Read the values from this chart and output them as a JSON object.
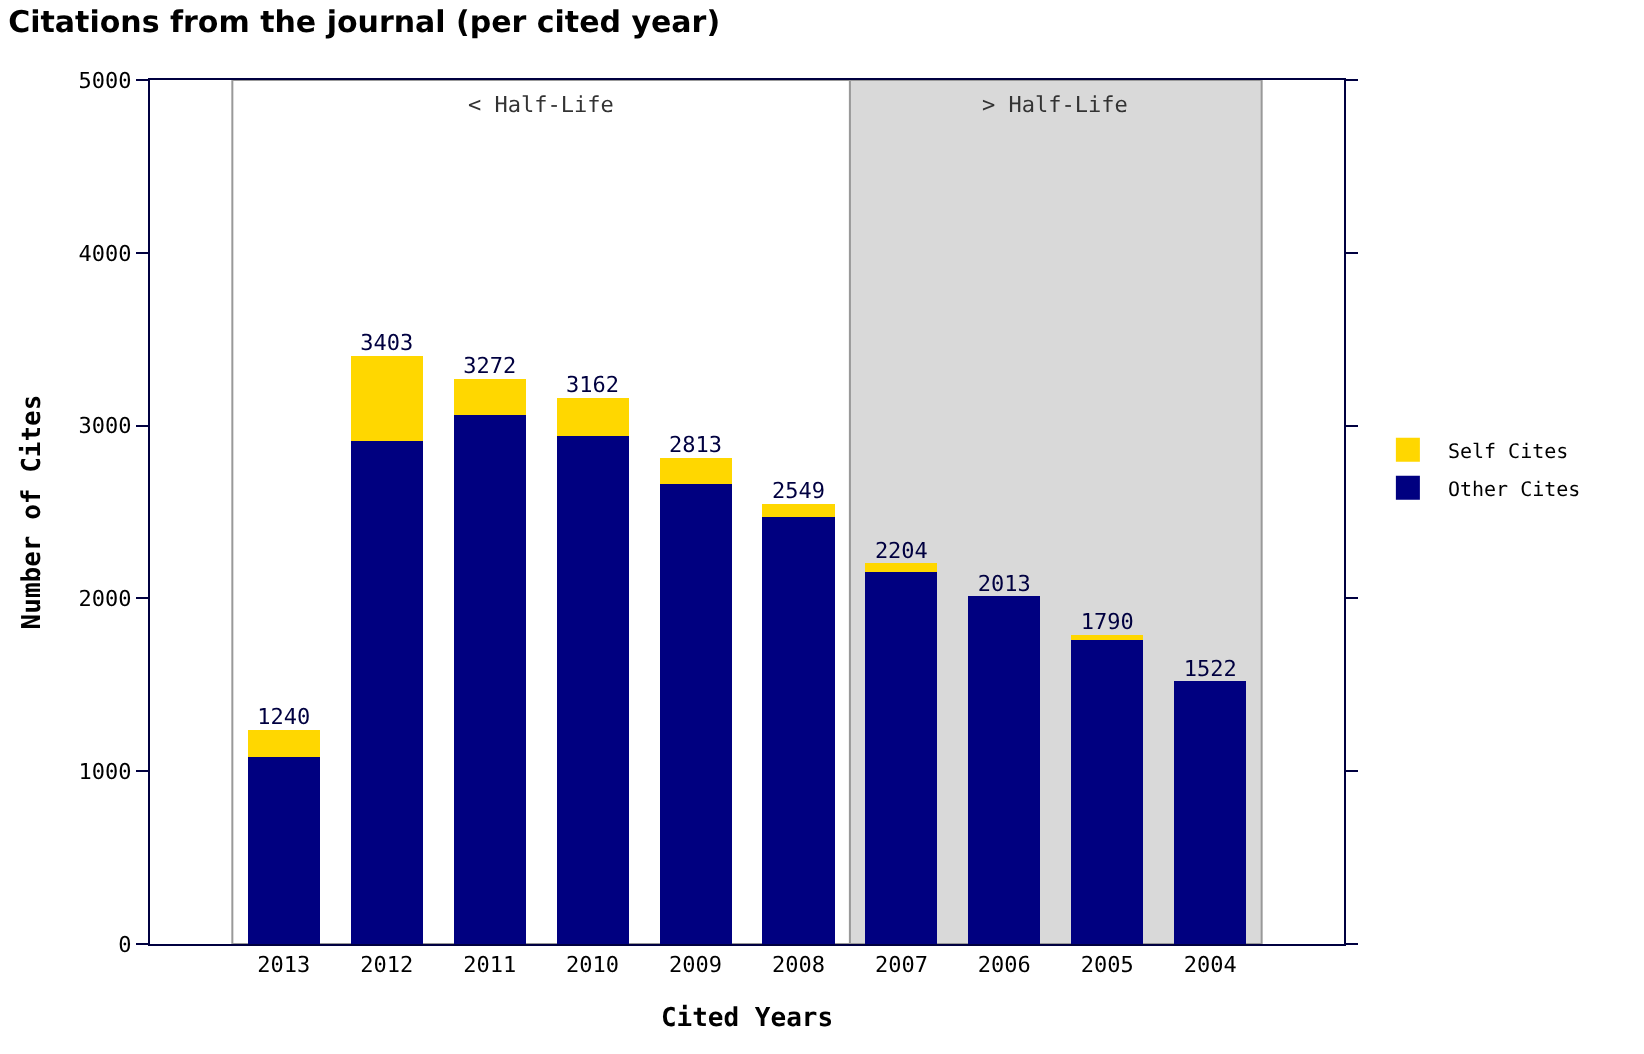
{
  "chart_data": {
    "type": "bar",
    "title": "Citations from the journal (per cited year)",
    "xlabel": "Cited Years",
    "ylabel": "Number of Cites",
    "categories": [
      "2013",
      "2012",
      "2011",
      "2010",
      "2009",
      "2008",
      "2007",
      "2006",
      "2005",
      "2004"
    ],
    "stacked": true,
    "series": [
      {
        "name": "Other Cites",
        "color": "#000080",
        "values": [
          1080,
          2913,
          3062,
          2942,
          2663,
          2469,
          2154,
          2013,
          1770,
          1522
        ]
      },
      {
        "name": "Self Cites",
        "color": "#ffd700",
        "values": [
          160,
          490,
          210,
          220,
          150,
          80,
          50,
          0,
          20,
          0
        ]
      }
    ],
    "totals": [
      "1240",
      "3403",
      "3272",
      "3162",
      "2813",
      "2549",
      "2204",
      "2013",
      "1790",
      "1522"
    ],
    "bands": [
      {
        "axis": "x",
        "from": "2013",
        "to": "2008",
        "label": "< Half-Life",
        "color": "#ffffff"
      },
      {
        "axis": "x",
        "from": "2007",
        "to": "2004",
        "label": "> Half-Life",
        "color": "#d9d9d9"
      }
    ],
    "ylim": [
      0,
      5000
    ],
    "yticks": [
      0,
      1000,
      2000,
      3000,
      4000,
      5000
    ],
    "legend": "right"
  }
}
